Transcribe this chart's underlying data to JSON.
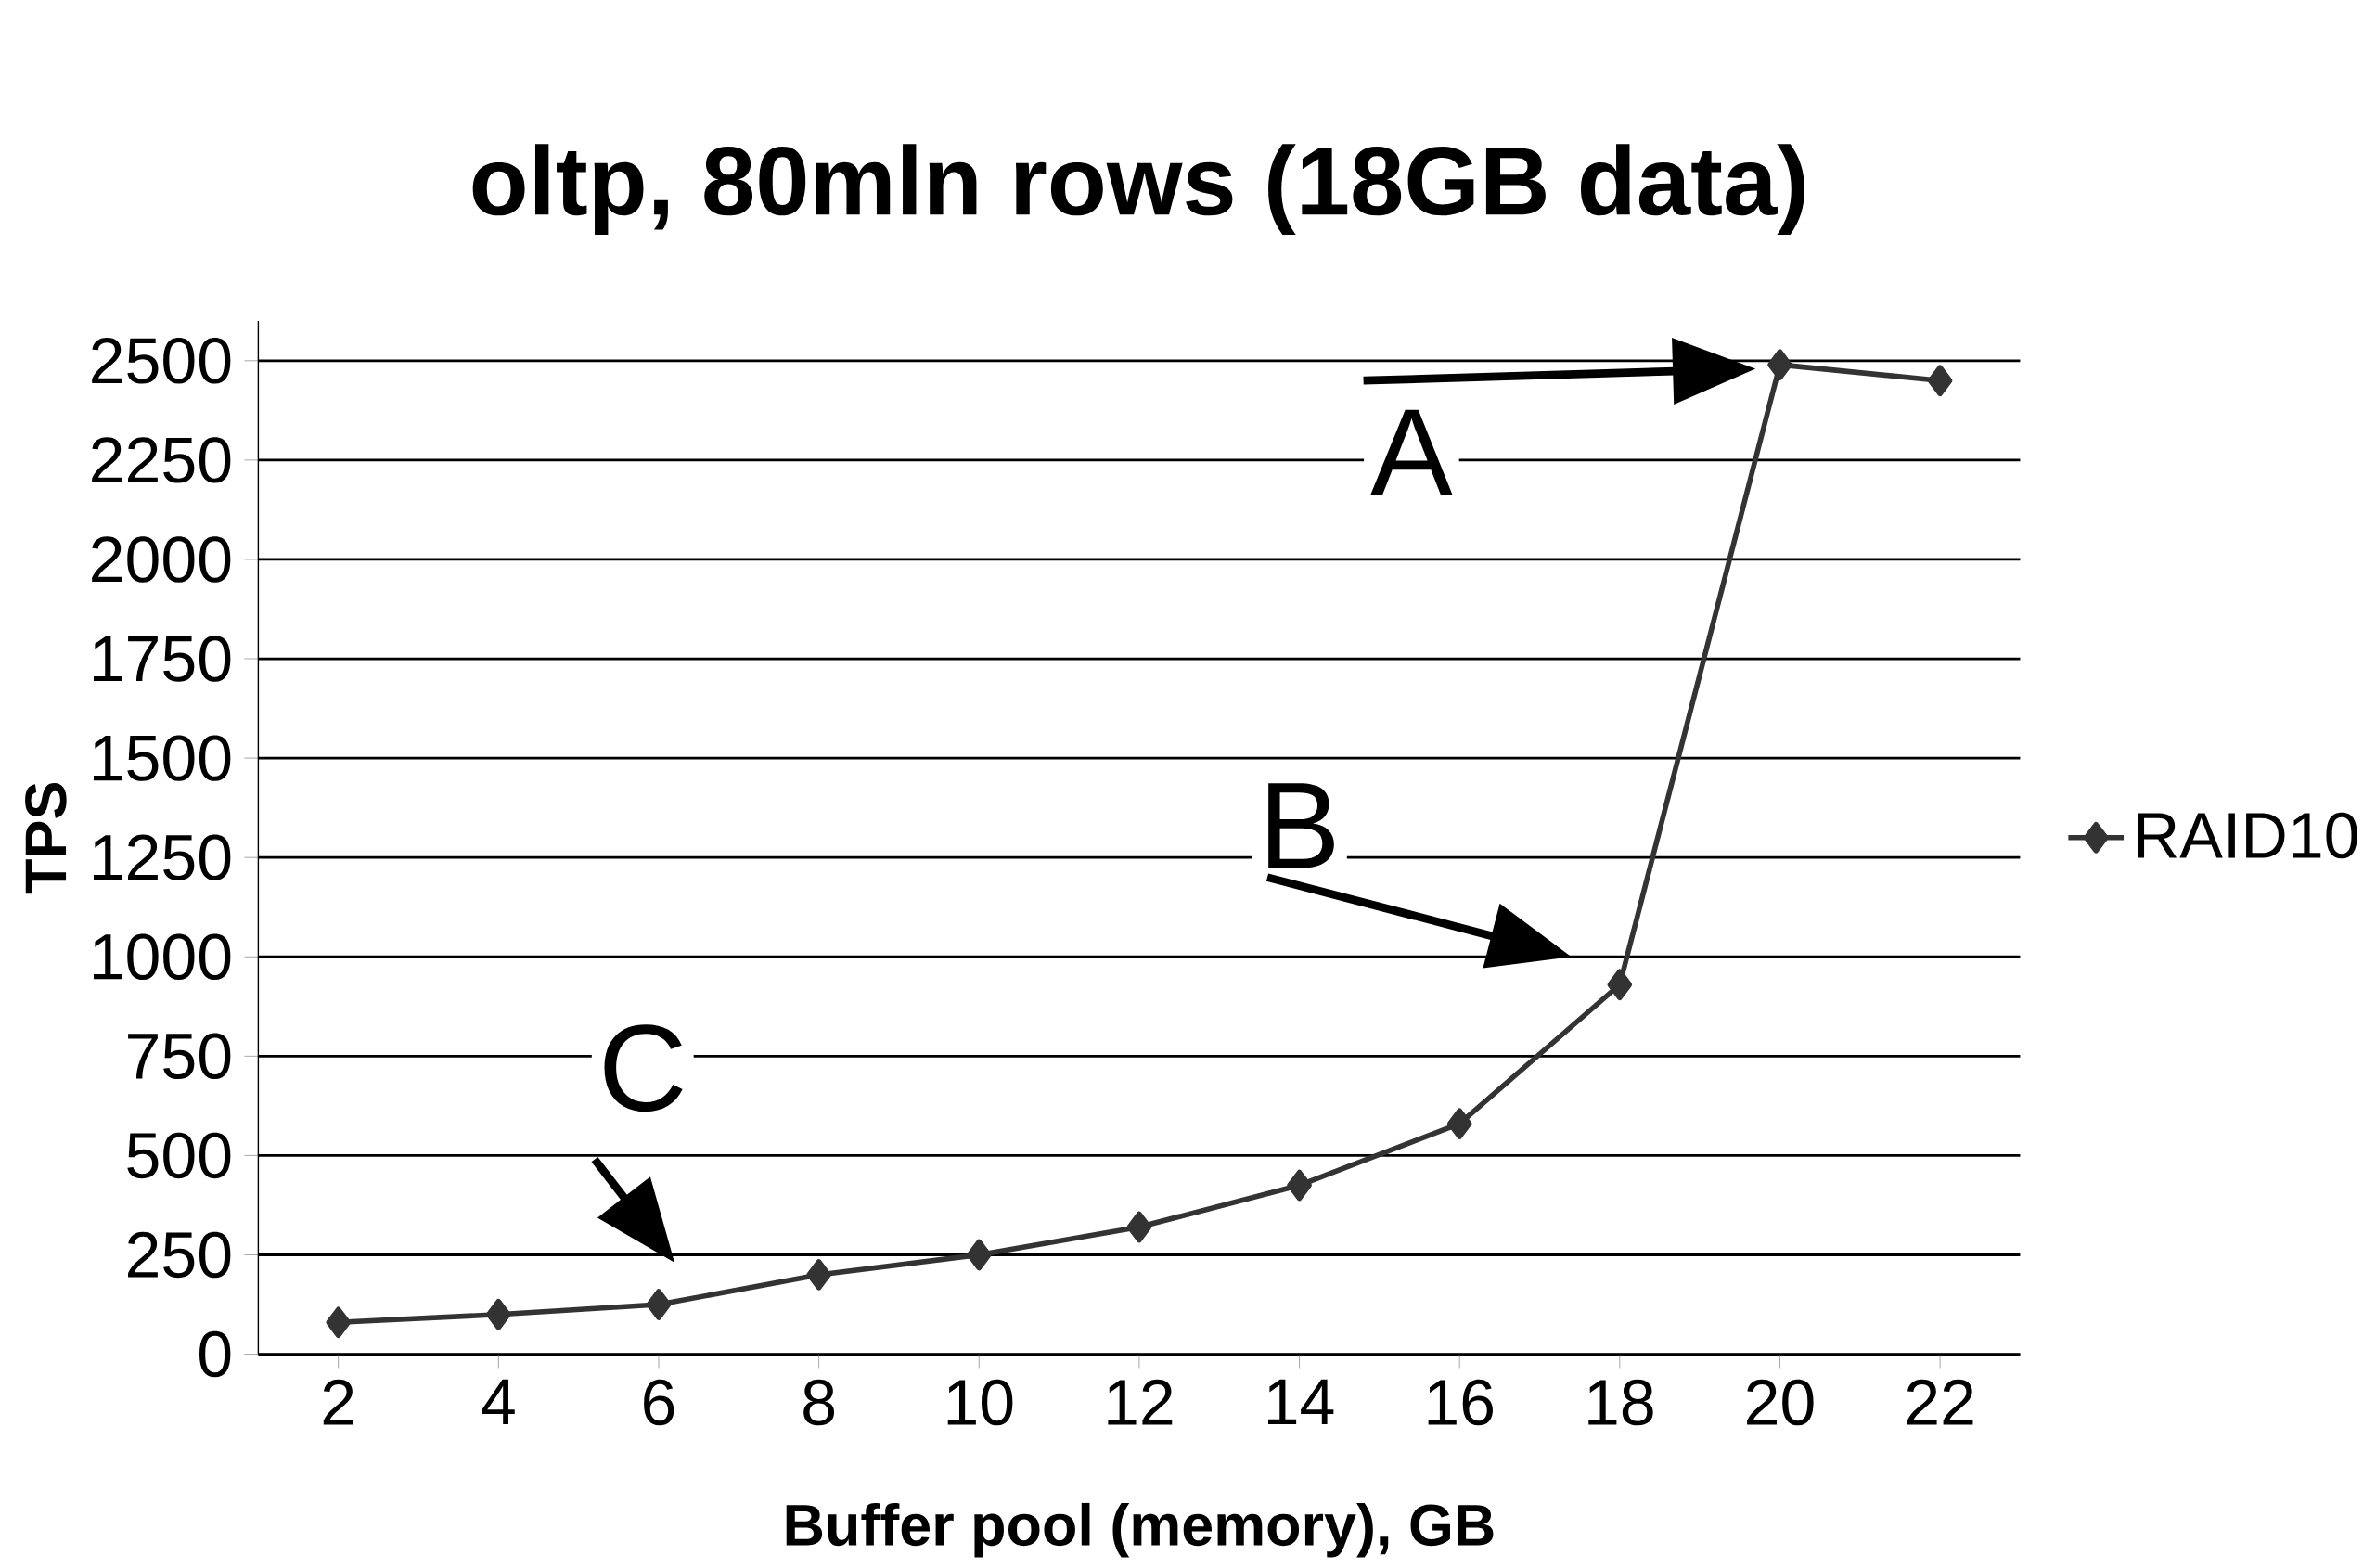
{
  "chart_data": {
    "type": "line",
    "title": "oltp, 80mln rows (18GB data)",
    "xlabel": "Buffer pool (memory), GB",
    "ylabel": "TPS",
    "categories": [
      "2",
      "4",
      "6",
      "8",
      "10",
      "12",
      "14",
      "16",
      "18",
      "20",
      "22"
    ],
    "series": [
      {
        "name": "RAID10",
        "color": "#333333",
        "values": [
          80,
          100,
          125,
          200,
          250,
          320,
          425,
          580,
          930,
          2490,
          2450
        ]
      }
    ],
    "ylim": [
      0,
      2600
    ],
    "yticks": [
      0,
      250,
      500,
      750,
      1000,
      1250,
      1500,
      1750,
      2000,
      2250,
      2500
    ],
    "grid": "y",
    "legend": "right",
    "marker": "diamond",
    "line_style": "solid",
    "annotations": [
      {
        "text": "A",
        "x": "20",
        "y": 2490
      },
      {
        "text": "B",
        "x": "18",
        "y": 930
      },
      {
        "text": "C",
        "x": "6",
        "y": 125
      }
    ]
  }
}
